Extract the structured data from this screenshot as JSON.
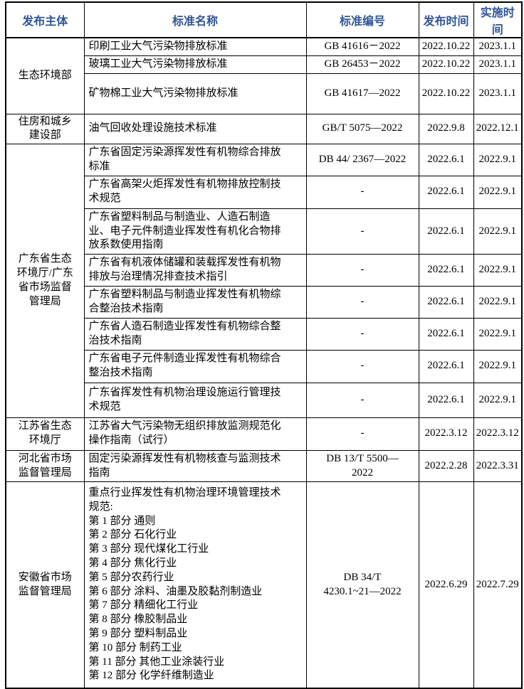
{
  "table": {
    "headers": {
      "publisher": "发布主体",
      "standard_name": "标准名称",
      "standard_code": "标准编号",
      "publish_date": "发布时间",
      "implement_date": "实施时间"
    },
    "groups": [
      {
        "publisher": "生态环境部",
        "rows": [
          {
            "name": "印刷工业大气污染物排放标准",
            "code": "GB 41616－2022",
            "publish_date": "2022.10.22",
            "implement_date": "2023.1.1"
          },
          {
            "name": "玻璃工业大气污染物排放标准",
            "code": "GB 26453－2022",
            "publish_date": "2022.10.22",
            "implement_date": "2023.1.1"
          },
          {
            "name": "矿物棉工业大气污染物排放标准",
            "code": "GB 41617—2022",
            "publish_date": "2022.10.22",
            "implement_date": "2023.1.1"
          }
        ]
      },
      {
        "publisher": "住房和城乡建设部",
        "rows": [
          {
            "name": "油气回收处理设施技术标准",
            "code": "GB/T 5075—2022",
            "publish_date": "2022.9.8",
            "implement_date": "2022.12.1"
          }
        ]
      },
      {
        "publisher": "广东省生态环境厅/广东省市场监督管理局",
        "rows": [
          {
            "name": "广东省固定污染源挥发性有机物综合排放标准",
            "code": "DB 44/ 2367—2022",
            "publish_date": "2022.6.1",
            "implement_date": "2022.9.1"
          },
          {
            "name": "广东省高架火炬挥发性有机物排放控制技术规范",
            "code": "-",
            "publish_date": "2022.6.1",
            "implement_date": "2022.9.1"
          },
          {
            "name": "广东省塑料制品与制造业、人造石制造业、电子元件制造业挥发性有机化合物排放系数使用指南",
            "code": "-",
            "publish_date": "2022.6.1",
            "implement_date": "2022.9.1"
          },
          {
            "name": "广东省有机液体储罐和装载挥发性有机物排放与治理情况排查技术指引",
            "code": "-",
            "publish_date": "2022.6.1",
            "implement_date": "2022.9.1"
          },
          {
            "name": "广东省塑料制品与制造业挥发性有机物综合整治技术指南",
            "code": "-",
            "publish_date": "2022.6.1",
            "implement_date": "2022.9.1"
          },
          {
            "name": "广东省人造石制造业挥发性有机物综合整治技术指南",
            "code": "-",
            "publish_date": "2022.6.1",
            "implement_date": "2022.9.1"
          },
          {
            "name": "广东省电子元件制造业挥发性有机物综合整治技术指南",
            "code": "-",
            "publish_date": "2022.6.1",
            "implement_date": "2022.9.1"
          },
          {
            "name": "广东省挥发性有机物治理设施运行管理技术规范",
            "code": "-",
            "publish_date": "2022.6.1",
            "implement_date": "2022.9.1"
          }
        ]
      },
      {
        "publisher": "江苏省生态环境厅",
        "rows": [
          {
            "name": "江苏省大气污染物无组织排放监测规范化操作指南（试行）",
            "code": "-",
            "publish_date": "2022.3.12",
            "implement_date": "2022.3.12"
          }
        ]
      },
      {
        "publisher": "河北省市场监督管理局",
        "rows": [
          {
            "name": "固定污染源挥发性有机物核查与监测技术指南",
            "code": "DB 13/T 5500—\n2022",
            "publish_date": "2022.2.28",
            "implement_date": "2022.3.31"
          }
        ]
      },
      {
        "publisher": "安徽省市场监督管理局",
        "rows": [
          {
            "name": "重点行业挥发性有机物治理环境管理技术规范:\n第 1 部分 通则\n第 2 部分 石化行业\n第 3 部分 现代煤化工行业\n第 4 部分 焦化行业\n第 5 部分农药行业\n第 6 部分 涂料、油墨及胶黏剂制造业\n第 7 部分 精细化工行业\n第 8 部分 橡胶制品业\n第 9 部分 塑料制品业\n第 10 部分 制药工业\n第 11 部分 其他工业涂装行业\n第 12 部分 化学纤维制造业",
            "code": "DB 34/T\n4230.1~21—2022",
            "publish_date": "2022.6.29",
            "implement_date": "2022.7.29"
          }
        ]
      }
    ],
    "placeholder_empty_code": "-",
    "colors": {
      "header_text": "#2F5496",
      "border": "#000000",
      "body_text": "#000000"
    }
  }
}
